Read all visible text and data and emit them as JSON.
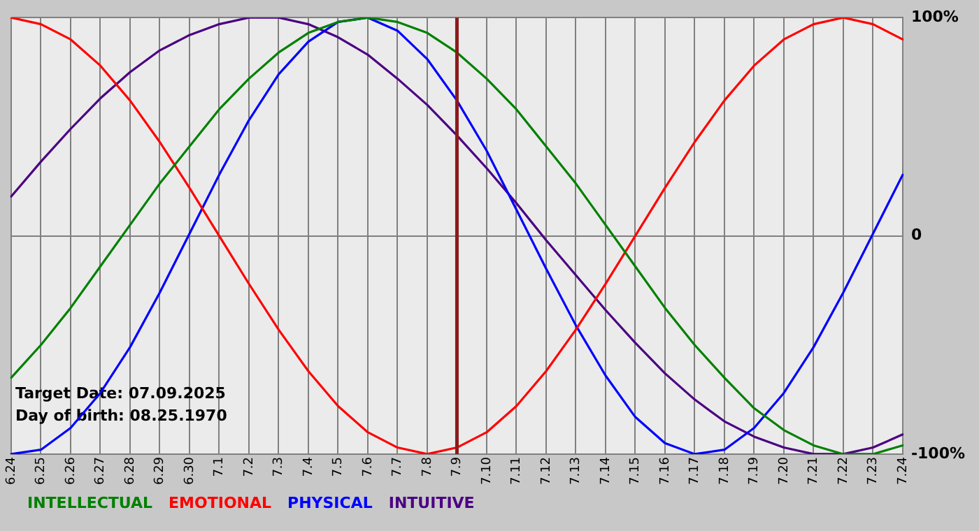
{
  "chart_data": {
    "type": "line",
    "categories": [
      "6.24",
      "6.25",
      "6.26",
      "6.27",
      "6.28",
      "6.29",
      "6.30",
      "7.1",
      "7.2",
      "7.3",
      "7.4",
      "7.5",
      "7.6",
      "7.7",
      "7.8",
      "7.9",
      "7.10",
      "7.11",
      "7.12",
      "7.13",
      "7.14",
      "7.15",
      "7.16",
      "7.17",
      "7.18",
      "7.19",
      "7.20",
      "7.21",
      "7.22",
      "7.23",
      "7.24"
    ],
    "series": [
      {
        "name": "INTELLECTUAL",
        "color": "#008000",
        "values": [
          -65,
          -50,
          -33,
          -14,
          5,
          24,
          41,
          58,
          72,
          84,
          93,
          98,
          100,
          98,
          93,
          84,
          72,
          58,
          41,
          24,
          5,
          -14,
          -33,
          -50,
          -65,
          -79,
          -89,
          -96,
          -100,
          -100,
          -96
        ]
      },
      {
        "name": "EMOTIONAL",
        "color": "#ff0000",
        "values": [
          100,
          97,
          90,
          78,
          62,
          43,
          22,
          0,
          -22,
          -43,
          -62,
          -78,
          -90,
          -97,
          -100,
          -97,
          -90,
          -78,
          -62,
          -43,
          -22,
          0,
          22,
          43,
          62,
          78,
          90,
          97,
          100,
          97,
          90
        ]
      },
      {
        "name": "PHYSICAL",
        "color": "#0000ff",
        "values": [
          -100,
          -98,
          -88,
          -72,
          -51,
          -26,
          1,
          28,
          53,
          74,
          89,
          98,
          100,
          94,
          81,
          62,
          39,
          12,
          -15,
          -41,
          -64,
          -83,
          -95,
          -100,
          -98,
          -88,
          -72,
          -51,
          -26,
          1,
          28
        ]
      },
      {
        "name": "INTUITIVE",
        "color": "#4b0082",
        "values": [
          18,
          34,
          49,
          63,
          75,
          85,
          92,
          97,
          100,
          100,
          97,
          91,
          83,
          72,
          60,
          46,
          31,
          15,
          -2,
          -18,
          -34,
          -49,
          -63,
          -75,
          -85,
          -92,
          -97,
          -100,
          -100,
          -97,
          -91
        ]
      }
    ],
    "ylim": [
      -100,
      100
    ],
    "yticks": [
      {
        "value": 100,
        "label": "100%"
      },
      0,
      {
        "value": -100,
        "label": "-100%"
      }
    ],
    "grid": true,
    "legend": "bottom",
    "marker": "none",
    "line_style": "solid",
    "ref_lines": [
      {
        "axis": "x",
        "value": "7.9",
        "color": "#8b1a1a"
      }
    ],
    "annotations": [
      "Target Date: 07.09.2025",
      "Day of birth: 08.25.1970"
    ]
  }
}
